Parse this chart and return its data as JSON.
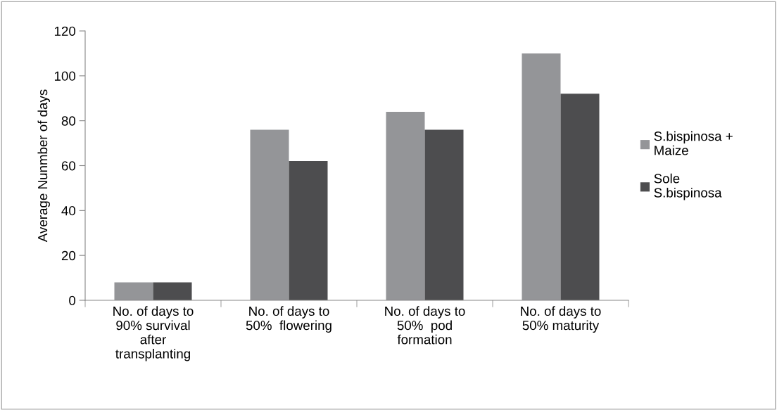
{
  "chart_data": {
    "type": "bar",
    "ylabel": "Average Nunmber of days",
    "categories": [
      "No. of days to\n90% survival\nafter\ntransplanting",
      "No. of days to\n50%  flowering",
      "No. of days to\n50%  pod\nformation",
      "No. of days to\n50% maturity"
    ],
    "series": [
      {
        "name": "S.bispinosa +\nMaize",
        "color": "#949598",
        "values": [
          8,
          76,
          84,
          110
        ]
      },
      {
        "name": "Sole\nS.bispinosa",
        "color": "#4d4d4f",
        "values": [
          8,
          62,
          76,
          92
        ]
      }
    ],
    "ylim": [
      0,
      120
    ],
    "yticks": [
      0,
      20,
      40,
      60,
      80,
      100,
      120
    ],
    "grid": false,
    "legend": "right"
  }
}
